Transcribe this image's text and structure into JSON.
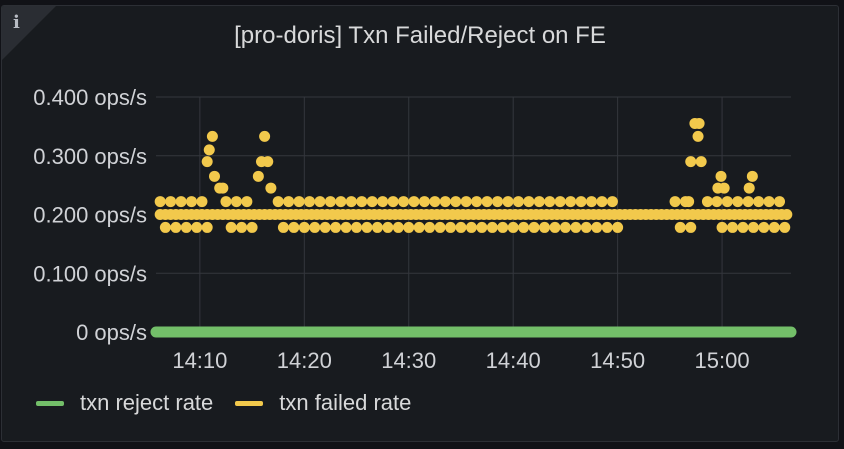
{
  "panel": {
    "title": "[pro-doris] Txn Failed/Reject on FE",
    "info_icon": "info-icon"
  },
  "chart_data": {
    "type": "scatter",
    "title": "[pro-doris] Txn Failed/Reject on FE",
    "x_ticks": [
      "14:10",
      "14:20",
      "14:30",
      "14:40",
      "14:50",
      "15:00"
    ],
    "x_tick_minutes": [
      10,
      20,
      30,
      40,
      50,
      60
    ],
    "xlim_minutes": [
      5.8,
      66.6
    ],
    "x_minute_base": "14:00",
    "y_ticks": [
      "0 ops/s",
      "0.100 ops/s",
      "0.200 ops/s",
      "0.300 ops/s",
      "0.400 ops/s"
    ],
    "y_tick_values": [
      0,
      0.1,
      0.2,
      0.3,
      0.4
    ],
    "ylim": [
      0,
      0.4
    ],
    "grid": true,
    "legend_position": "bottom-left",
    "series": [
      {
        "name": "txn reject rate",
        "color": "#73bf69",
        "style": "line",
        "start_minute": 5.8,
        "end_minute": 66.6,
        "value": 0
      },
      {
        "name": "txn failed rate",
        "color": "#f2c94c",
        "style": "points",
        "base_start_minute": 6.2,
        "base_end_minute": 66.4,
        "base_step_minutes": 0.5,
        "base_value": 0.2,
        "band_segments": [
          {
            "start": 6.2,
            "end": 10.5,
            "step": 1.0,
            "upper": 0.222,
            "lower": 0.178
          },
          {
            "start": 12.5,
            "end": 15.0,
            "step": 1.0,
            "upper": 0.222,
            "lower": 0.178
          },
          {
            "start": 17.5,
            "end": 50.0,
            "step": 1.0,
            "upper": 0.222,
            "lower": 0.178
          },
          {
            "start": 55.5,
            "end": 56.5,
            "step": 1.0,
            "upper": 0.222,
            "lower": 0.178
          },
          {
            "start": 59.5,
            "end": 66.4,
            "step": 1.0,
            "upper": 0.222,
            "lower": 0.178
          }
        ],
        "spikes": [
          {
            "x": 10.7,
            "y": 0.29
          },
          {
            "x": 10.9,
            "y": 0.31
          },
          {
            "x": 11.2,
            "y": 0.333
          },
          {
            "x": 11.4,
            "y": 0.265
          },
          {
            "x": 11.9,
            "y": 0.245
          },
          {
            "x": 12.2,
            "y": 0.245
          },
          {
            "x": 15.6,
            "y": 0.265
          },
          {
            "x": 15.9,
            "y": 0.29
          },
          {
            "x": 16.2,
            "y": 0.333
          },
          {
            "x": 16.5,
            "y": 0.29
          },
          {
            "x": 16.8,
            "y": 0.245
          },
          {
            "x": 56.8,
            "y": 0.222
          },
          {
            "x": 57.0,
            "y": 0.29
          },
          {
            "x": 57.4,
            "y": 0.355
          },
          {
            "x": 57.8,
            "y": 0.355
          },
          {
            "x": 57.7,
            "y": 0.333
          },
          {
            "x": 58.0,
            "y": 0.29
          },
          {
            "x": 58.6,
            "y": 0.222
          },
          {
            "x": 59.6,
            "y": 0.245
          },
          {
            "x": 59.9,
            "y": 0.265
          },
          {
            "x": 60.2,
            "y": 0.245
          },
          {
            "x": 62.6,
            "y": 0.245
          },
          {
            "x": 62.9,
            "y": 0.265
          }
        ]
      }
    ]
  },
  "legend": [
    {
      "label": "txn reject rate",
      "color": "#73bf69"
    },
    {
      "label": "txn failed rate",
      "color": "#f2c94c"
    }
  ]
}
